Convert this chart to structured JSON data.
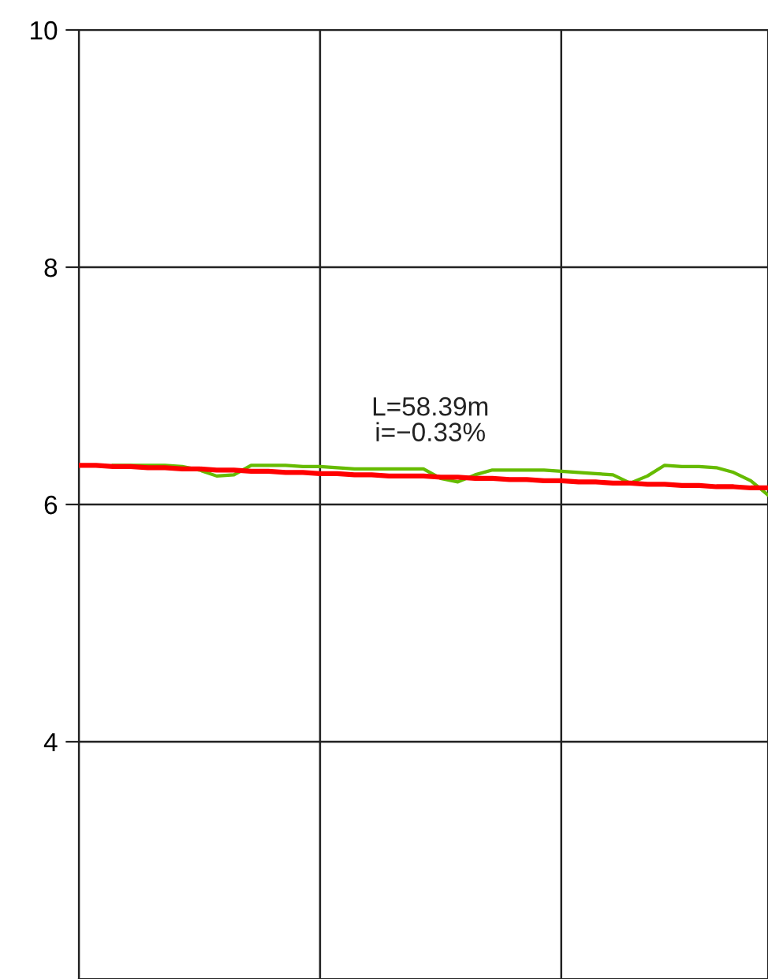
{
  "chart_data": {
    "type": "line",
    "annotations": [
      "L=58.39m",
      "i=−0.33%"
    ],
    "categories": [
      null,
      null,
      null,
      null,
      null,
      null,
      null,
      null,
      null,
      null,
      null,
      null,
      null,
      null,
      null,
      null,
      null,
      null,
      null,
      null,
      null,
      null,
      null,
      null,
      null,
      null,
      null,
      null,
      null,
      null,
      null,
      null,
      null,
      null,
      null,
      null,
      null,
      null,
      null,
      null,
      null
    ],
    "series": [
      {
        "color": "#66bb00",
        "values": [
          null,
          null,
          6.33,
          6.33,
          6.33,
          6.33,
          6.32,
          6.29,
          6.24,
          6.25,
          6.33,
          6.33,
          6.33,
          6.32,
          6.32,
          6.31,
          6.3,
          6.3,
          6.3,
          6.3,
          6.3,
          6.22,
          6.19,
          6.25,
          6.29,
          6.29,
          6.29,
          6.29,
          6.28,
          6.27,
          6.26,
          6.25,
          6.18,
          6.24,
          6.33,
          6.32,
          6.32,
          6.31,
          6.27,
          6.2,
          6.08
        ]
      },
      {
        "color": "#ff0000",
        "values": [
          6.33,
          6.33,
          6.32,
          6.32,
          6.31,
          6.31,
          6.3,
          6.3,
          6.29,
          6.29,
          6.28,
          6.28,
          6.27,
          6.27,
          6.26,
          6.26,
          6.25,
          6.25,
          6.24,
          6.24,
          6.24,
          6.23,
          6.23,
          6.22,
          6.22,
          6.21,
          6.21,
          6.2,
          6.2,
          6.19,
          6.19,
          6.18,
          6.18,
          6.17,
          6.17,
          6.16,
          6.16,
          6.15,
          6.15,
          6.14,
          6.14
        ]
      }
    ],
    "ylim": [
      2,
      10
    ],
    "yticks": [
      4,
      6,
      8,
      10
    ],
    "tick_labels": "y",
    "grid": true,
    "marker": "none",
    "line_style": "solid",
    "legend": false
  }
}
